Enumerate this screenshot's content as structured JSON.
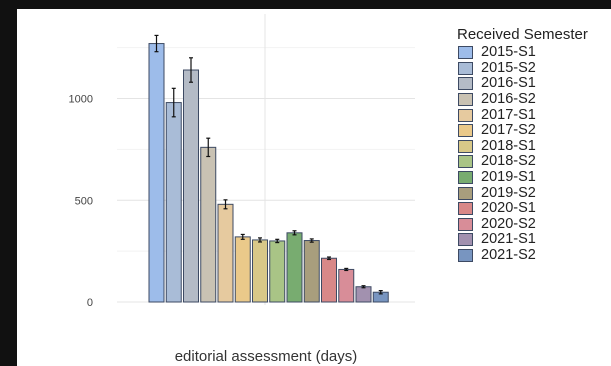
{
  "chart_data": {
    "type": "bar",
    "title": "",
    "xlabel": "editorial assessment (days)",
    "ylabel": "",
    "ylim": [
      0,
      1370
    ],
    "yticks": [
      0,
      500,
      1000
    ],
    "grid": true,
    "legend_title": "Received Semester",
    "legend_position": "right",
    "categories": [
      "2015-S1",
      "2015-S2",
      "2016-S1",
      "2016-S2",
      "2017-S1",
      "2017-S2",
      "2018-S1",
      "2018-S2",
      "2019-S1",
      "2019-S2",
      "2020-S1",
      "2020-S2",
      "2021-S1",
      "2021-S2"
    ],
    "values": [
      1270,
      980,
      1140,
      760,
      480,
      320,
      305,
      300,
      340,
      302,
      215,
      160,
      75,
      48
    ],
    "errors": [
      40,
      70,
      60,
      45,
      22,
      12,
      10,
      8,
      10,
      8,
      6,
      5,
      5,
      8
    ],
    "colors": [
      "#9dbcea",
      "#a9bcd7",
      "#b4bbc6",
      "#c9c2b3",
      "#e6ca9f",
      "#eac98a",
      "#d8c888",
      "#a9c486",
      "#78ac70",
      "#a89e7d",
      "#d88888",
      "#d88d98",
      "#a291af",
      "#7895c0"
    ]
  }
}
